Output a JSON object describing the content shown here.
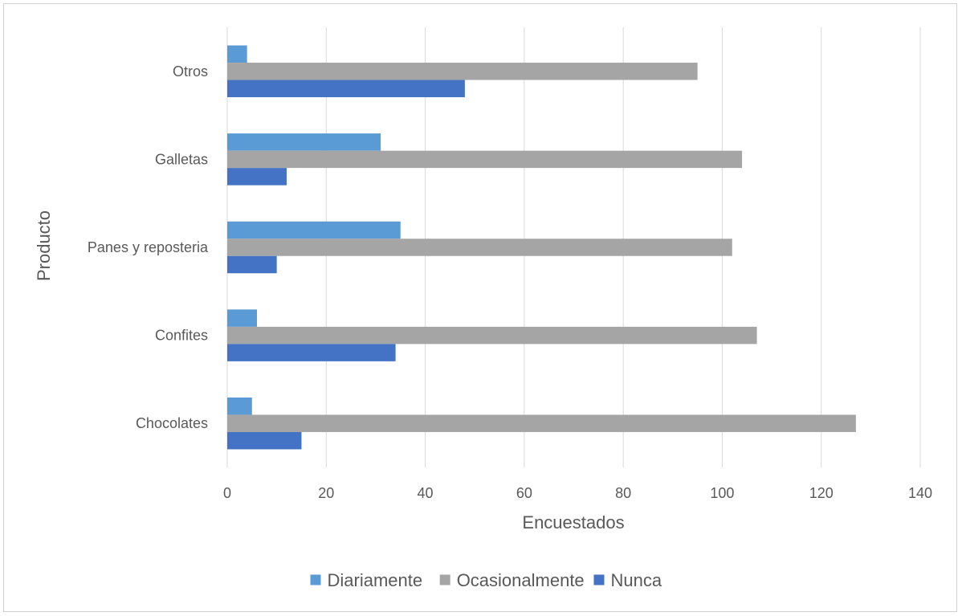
{
  "chart_data": {
    "type": "bar",
    "orientation": "horizontal",
    "categories": [
      "Chocolates",
      "Confites",
      "Panes y reposteria",
      "Galletas",
      "Otros"
    ],
    "series": [
      {
        "name": "Diariamente",
        "color": "#5B9BD5",
        "values": [
          5,
          6,
          35,
          31,
          4
        ]
      },
      {
        "name": "Ocasionalmente",
        "color": "#A5A5A5",
        "values": [
          127,
          107,
          102,
          104,
          95
        ]
      },
      {
        "name": "Nunca",
        "color": "#4472C4",
        "values": [
          15,
          34,
          10,
          12,
          48
        ]
      }
    ],
    "xlabel": "Encuestados",
    "ylabel": "Producto",
    "xlim": [
      0,
      140
    ],
    "xticks": [
      0,
      20,
      40,
      60,
      80,
      100,
      120,
      140
    ],
    "grid": true,
    "legend_position": "bottom"
  },
  "colors": {
    "grid": "#d9d9d9",
    "text": "#595959"
  }
}
